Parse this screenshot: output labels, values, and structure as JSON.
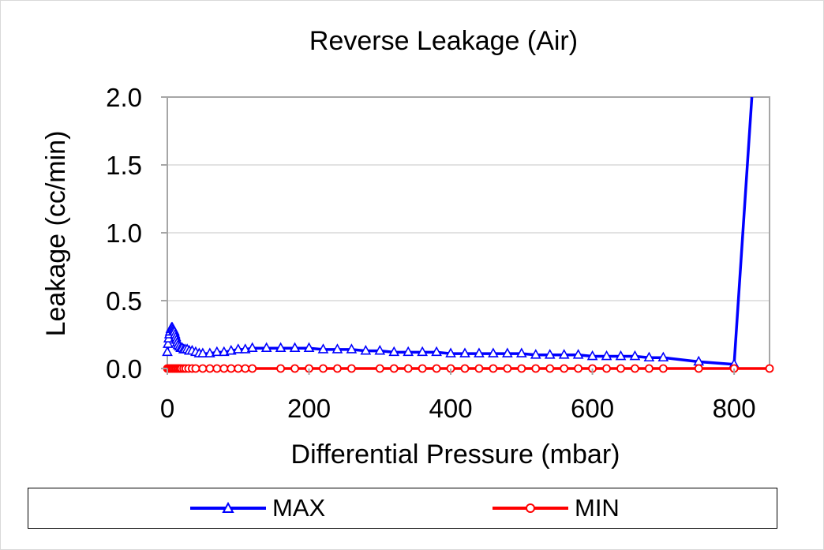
{
  "chart_data": {
    "type": "line",
    "title": "Reverse Leakage (Air)",
    "xlabel": "Differential Pressure (mbar)",
    "ylabel": "Leakage (cc/min)",
    "xlim": [
      0,
      850
    ],
    "ylim": [
      0,
      2.0
    ],
    "xticks": [
      0,
      200,
      400,
      600,
      800
    ],
    "yticks": [
      0.0,
      0.5,
      1.0,
      1.5,
      2.0
    ],
    "xtick_labels": [
      "0",
      "200",
      "400",
      "600",
      "800"
    ],
    "ytick_labels": [
      "0.0",
      "0.5",
      "1.0",
      "1.5",
      "2.0"
    ],
    "grid": true,
    "legend_position": "bottom",
    "series": [
      {
        "name": "MAX",
        "color": "#0000ff",
        "marker": "triangle",
        "x": [
          0,
          1,
          2,
          3,
          4,
          5,
          6,
          7,
          8,
          9,
          10,
          11,
          12,
          13,
          14,
          15,
          17,
          19,
          21,
          23,
          25,
          28,
          31,
          35,
          40,
          45,
          50,
          60,
          70,
          80,
          90,
          100,
          110,
          120,
          140,
          160,
          180,
          200,
          220,
          240,
          260,
          280,
          300,
          320,
          340,
          360,
          380,
          400,
          420,
          440,
          460,
          480,
          500,
          520,
          540,
          560,
          580,
          600,
          620,
          640,
          660,
          680,
          700,
          750,
          800,
          825
        ],
        "y": [
          0.12,
          0.18,
          0.22,
          0.25,
          0.27,
          0.29,
          0.3,
          0.3,
          0.29,
          0.28,
          0.27,
          0.25,
          0.23,
          0.21,
          0.19,
          0.17,
          0.16,
          0.15,
          0.15,
          0.14,
          0.14,
          0.14,
          0.13,
          0.13,
          0.12,
          0.11,
          0.11,
          0.11,
          0.12,
          0.12,
          0.13,
          0.14,
          0.14,
          0.15,
          0.15,
          0.15,
          0.15,
          0.15,
          0.14,
          0.14,
          0.14,
          0.13,
          0.13,
          0.12,
          0.12,
          0.12,
          0.12,
          0.11,
          0.11,
          0.11,
          0.11,
          0.11,
          0.11,
          0.1,
          0.1,
          0.1,
          0.1,
          0.09,
          0.09,
          0.09,
          0.09,
          0.08,
          0.08,
          0.05,
          0.03,
          2.0
        ]
      },
      {
        "name": "MIN",
        "color": "#ff0000",
        "marker": "circle",
        "x": [
          0,
          2,
          4,
          6,
          8,
          10,
          12,
          14,
          16,
          18,
          20,
          23,
          26,
          30,
          35,
          40,
          50,
          60,
          70,
          80,
          90,
          100,
          110,
          120,
          160,
          180,
          200,
          220,
          240,
          260,
          300,
          320,
          340,
          360,
          380,
          400,
          420,
          440,
          460,
          480,
          500,
          520,
          540,
          560,
          580,
          600,
          620,
          640,
          660,
          680,
          700,
          750,
          800,
          850
        ],
        "y": [
          0.0,
          0.0,
          0.0,
          0.0,
          0.0,
          0.0,
          0.0,
          0.0,
          0.0,
          0.0,
          0.0,
          0.0,
          0.0,
          0.0,
          0.0,
          0.0,
          0.0,
          0.0,
          0.0,
          0.0,
          0.0,
          0.0,
          0.0,
          0.0,
          0.0,
          0.0,
          0.0,
          0.0,
          0.0,
          0.0,
          0.0,
          0.0,
          0.0,
          0.0,
          0.0,
          0.0,
          0.0,
          0.0,
          0.0,
          0.0,
          0.0,
          0.0,
          0.0,
          0.0,
          0.0,
          0.0,
          0.0,
          0.0,
          0.0,
          0.0,
          0.0,
          0.0,
          0.0,
          0.0
        ]
      }
    ]
  }
}
